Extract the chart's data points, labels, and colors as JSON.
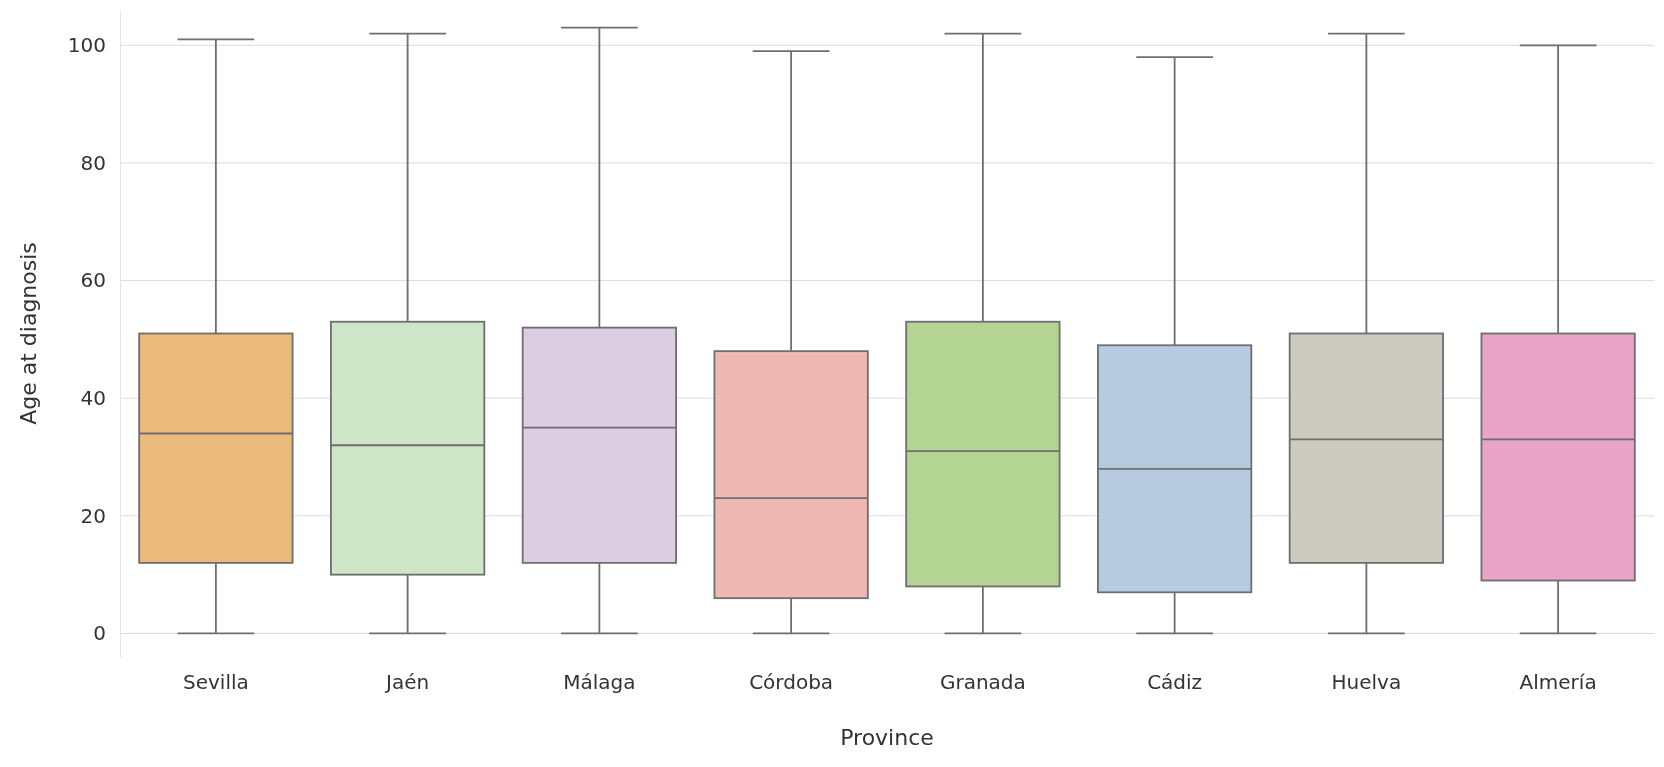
{
  "chart_data": {
    "type": "box",
    "xlabel": "Province",
    "ylabel": "Age at diagnosis",
    "categories": [
      "Sevilla",
      "Jaén",
      "Málaga",
      "Córdoba",
      "Granada",
      "Cádiz",
      "Huelva",
      "Almería"
    ],
    "colors": [
      "#ebbb7c",
      "#cfe5c8",
      "#dccde2",
      "#f0b8b3",
      "#b3d492",
      "#b6cbdf",
      "#cccbbf",
      "#e9a3c6"
    ],
    "boxes": [
      {
        "low": 0,
        "q1": 12,
        "median": 34,
        "q3": 51,
        "high": 101
      },
      {
        "low": 0,
        "q1": 10,
        "median": 32,
        "q3": 53,
        "high": 102
      },
      {
        "low": 0,
        "q1": 12,
        "median": 35,
        "q3": 52,
        "high": 103
      },
      {
        "low": 0,
        "q1": 6,
        "median": 23,
        "q3": 48,
        "high": 99
      },
      {
        "low": 0,
        "q1": 8,
        "median": 31,
        "q3": 53,
        "high": 102
      },
      {
        "low": 0,
        "q1": 7,
        "median": 28,
        "q3": 49,
        "high": 98
      },
      {
        "low": 0,
        "q1": 12,
        "median": 33,
        "q3": 51,
        "high": 102
      },
      {
        "low": 0,
        "q1": 9,
        "median": 33,
        "q3": 51,
        "high": 100
      }
    ],
    "ylim": [
      -4,
      106
    ],
    "yticks": [
      0,
      20,
      40,
      60,
      80,
      100
    ],
    "grid": "y"
  }
}
